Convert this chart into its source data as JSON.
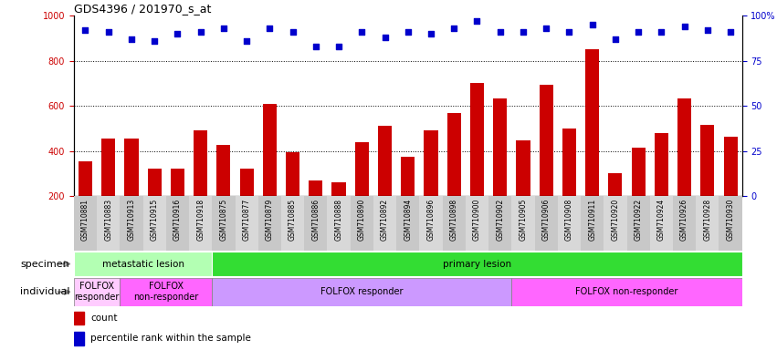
{
  "title": "GDS4396 / 201970_s_at",
  "samples": [
    "GSM710881",
    "GSM710883",
    "GSM710913",
    "GSM710915",
    "GSM710916",
    "GSM710918",
    "GSM710875",
    "GSM710877",
    "GSM710879",
    "GSM710885",
    "GSM710886",
    "GSM710888",
    "GSM710890",
    "GSM710892",
    "GSM710894",
    "GSM710896",
    "GSM710898",
    "GSM710900",
    "GSM710902",
    "GSM710905",
    "GSM710906",
    "GSM710908",
    "GSM710911",
    "GSM710920",
    "GSM710922",
    "GSM710924",
    "GSM710926",
    "GSM710928",
    "GSM710930"
  ],
  "counts": [
    355,
    455,
    455,
    320,
    320,
    490,
    425,
    320,
    610,
    395,
    270,
    260,
    440,
    510,
    375,
    490,
    570,
    700,
    635,
    445,
    695,
    500,
    850,
    300,
    415,
    480,
    635,
    515,
    465
  ],
  "percentiles": [
    92,
    91,
    87,
    86,
    90,
    91,
    93,
    86,
    93,
    91,
    83,
    83,
    91,
    88,
    91,
    90,
    93,
    97,
    91,
    91,
    93,
    91,
    95,
    87,
    91,
    91,
    94,
    92,
    91
  ],
  "ylim_left": [
    200,
    1000
  ],
  "ylim_right": [
    0,
    100
  ],
  "yticks_left": [
    200,
    400,
    600,
    800,
    1000
  ],
  "yticks_right": [
    0,
    25,
    50,
    75,
    100
  ],
  "bar_color": "#cc0000",
  "dot_color": "#0000cc",
  "grid_levels": [
    400,
    600,
    800
  ],
  "specimen_groups": [
    {
      "label": "metastatic lesion",
      "start": 0,
      "end": 6,
      "color": "#b3ffb3"
    },
    {
      "label": "primary lesion",
      "start": 6,
      "end": 29,
      "color": "#33dd33"
    }
  ],
  "individual_groups": [
    {
      "label": "FOLFOX\nresponder",
      "start": 0,
      "end": 2,
      "color": "#ffccff"
    },
    {
      "label": "FOLFOX\nnon-responder",
      "start": 2,
      "end": 6,
      "color": "#ff66ff"
    },
    {
      "label": "FOLFOX responder",
      "start": 6,
      "end": 19,
      "color": "#cc99ff"
    },
    {
      "label": "FOLFOX non-responder",
      "start": 19,
      "end": 29,
      "color": "#ff66ff"
    }
  ],
  "xticklabel_fontsize": 5.5,
  "bar_color_red": "#cc0000",
  "dot_color_blue": "#0000cc"
}
